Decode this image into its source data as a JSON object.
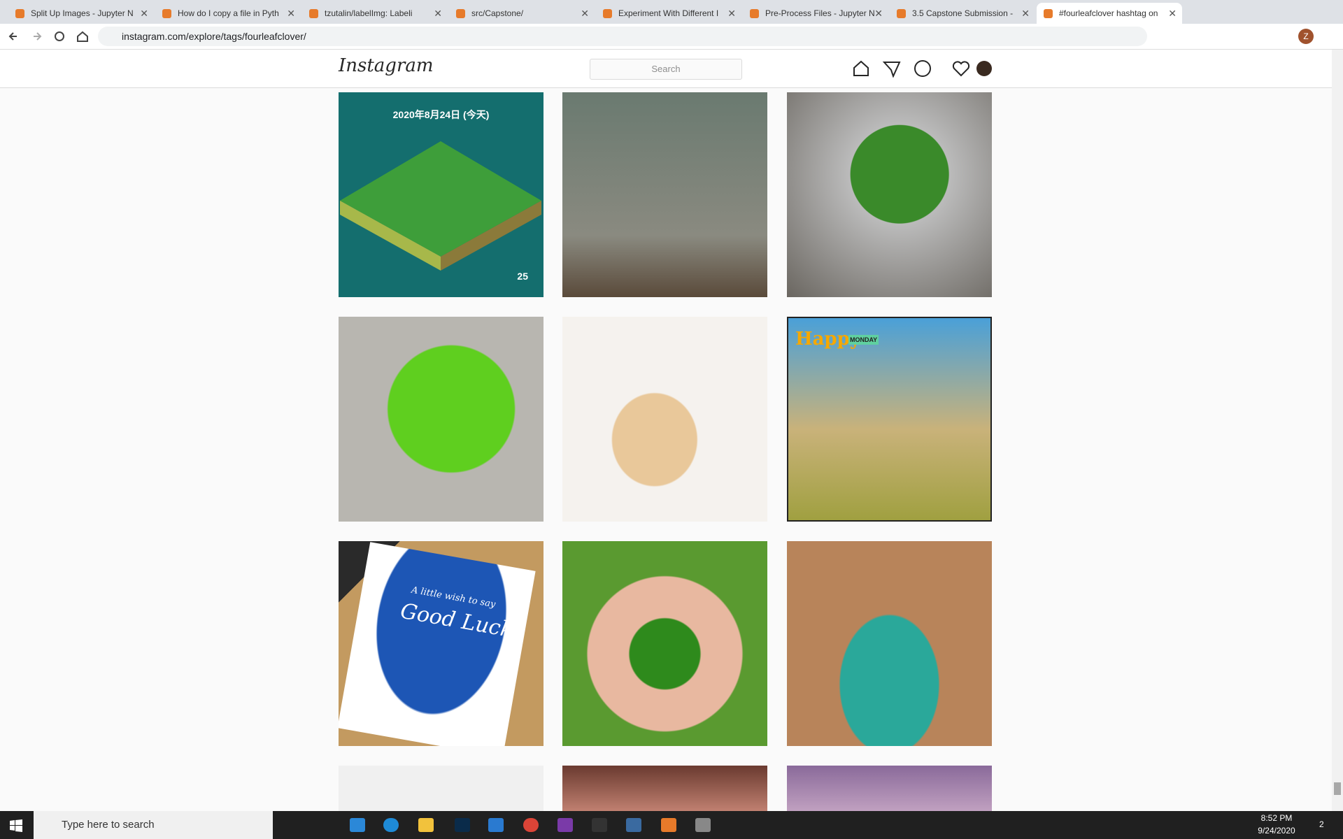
{
  "browser": {
    "tabs": [
      "Split Up Images - Jupyter N",
      "How do I copy a file in Pyth",
      "tzutalin/labelImg: Labeli",
      "src/Capstone/",
      "Experiment With Different I",
      "Pre-Process Files - Jupyter N",
      "3.5 Capstone Submission - ",
      "#fourleafclover hashtag on"
    ],
    "url": "instagram.com/explore/tags/fourleafclover/",
    "profile": "Z"
  },
  "header": {
    "logo": "Instagram",
    "search_placeholder": "Search"
  },
  "posts": {
    "first": {
      "date": "2020年8月24日 (今天)",
      "count": "25"
    },
    "monday": {
      "happy": "Happy",
      "monday": "MONDAY"
    },
    "luck": {
      "line1": "A little wish to say",
      "line2": "Good Luck!"
    }
  },
  "taskbar": {
    "search": "Type here to search",
    "time": "8:52 PM",
    "date": "9/24/2020",
    "notifications": "2"
  }
}
